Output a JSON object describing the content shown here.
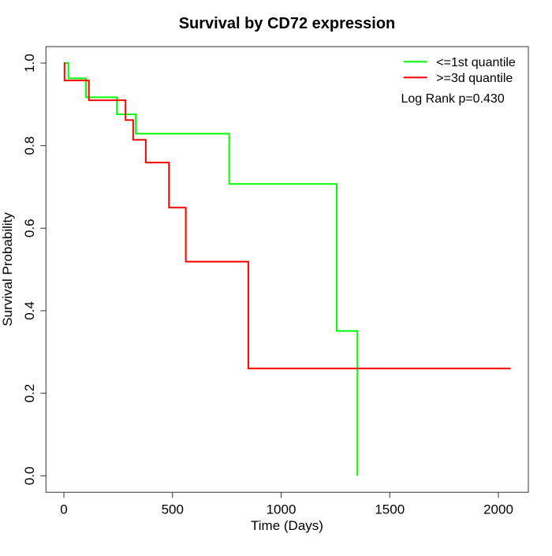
{
  "title": "Survival by CD72 expression",
  "axes": {
    "xlabel": "Time (Days)",
    "ylabel": "Survival Probability"
  },
  "legend": {
    "items": [
      {
        "label": "<=1st quantile",
        "color": "#00ff00"
      },
      {
        "label": ">=3d quantile",
        "color": "#ff0000"
      }
    ],
    "note": "Log Rank p=0.430"
  },
  "chart_data": {
    "type": "line",
    "subtype": "kaplan-meier-step",
    "title": "Survival by CD72 expression",
    "xlabel": "Time (Days)",
    "ylabel": "Survival Probability",
    "xlim": [
      0,
      2057
    ],
    "ylim": [
      0.0,
      1.0
    ],
    "x_ticks": [
      0,
      500,
      1000,
      1500,
      2000
    ],
    "y_ticks": [
      "0.0",
      "0.2",
      "0.4",
      "0.6",
      "0.8",
      "1.0"
    ],
    "grid": "off",
    "legend_position": "top-right",
    "annotation": "Log Rank p=0.430",
    "series": [
      {
        "name": "<=1st quantile",
        "color": "#00ff00",
        "start": [
          0,
          1.0
        ],
        "steps": [
          [
            21,
            0.963
          ],
          [
            102,
            0.917
          ],
          [
            244,
            0.876
          ],
          [
            331,
            0.829
          ],
          [
            761,
            0.707
          ],
          [
            1256,
            0.351
          ],
          [
            1351,
            0.0
          ]
        ],
        "end_time": 1351
      },
      {
        "name": ">=3d quantile",
        "color": "#ff0000",
        "start": [
          0,
          1.0
        ],
        "steps": [
          [
            3,
            0.958
          ],
          [
            115,
            0.91
          ],
          [
            284,
            0.862
          ],
          [
            319,
            0.814
          ],
          [
            377,
            0.759
          ],
          [
            484,
            0.65
          ],
          [
            561,
            0.519
          ],
          [
            849,
            0.26
          ]
        ],
        "end_time": 2057
      }
    ]
  }
}
